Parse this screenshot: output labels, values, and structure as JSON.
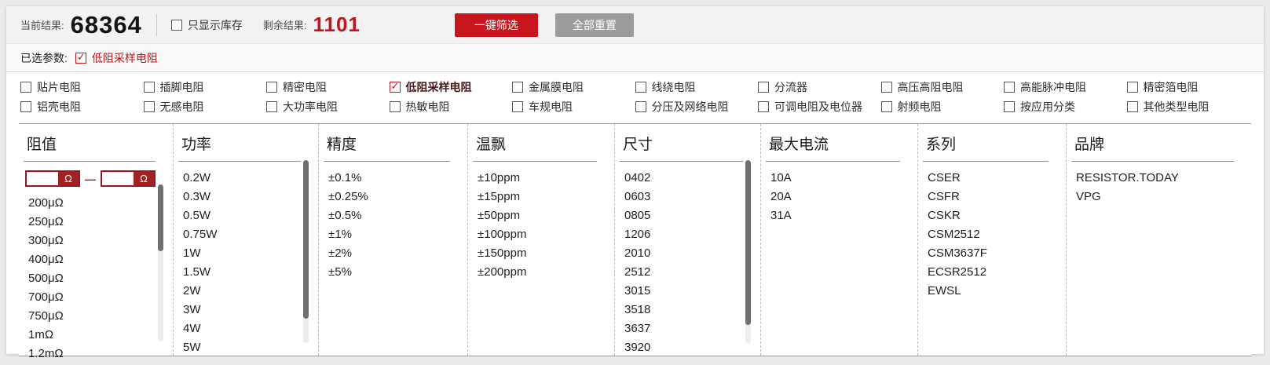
{
  "header": {
    "current_label": "当前结果:",
    "current_value": "68364",
    "stock_checkbox_label": "只显示库存",
    "stock_checked": false,
    "remaining_label": "剩余结果:",
    "remaining_value": "1101",
    "filter_button": "一键筛选",
    "reset_button": "全部重置"
  },
  "selected": {
    "label": "已选参数:",
    "items": [
      {
        "label": "低阻采样电阻",
        "checked": true
      }
    ]
  },
  "categories": [
    {
      "label": "贴片电阻",
      "checked": false
    },
    {
      "label": "插脚电阻",
      "checked": false
    },
    {
      "label": "精密电阻",
      "checked": false
    },
    {
      "label": "低阻采样电阻",
      "checked": true
    },
    {
      "label": "金属膜电阻",
      "checked": false
    },
    {
      "label": "线绕电阻",
      "checked": false
    },
    {
      "label": "分流器",
      "checked": false
    },
    {
      "label": "高压高阻电阻",
      "checked": false
    },
    {
      "label": "高能脉冲电阻",
      "checked": false
    },
    {
      "label": "精密箔电阻",
      "checked": false
    },
    {
      "label": "铝壳电阻",
      "checked": false
    },
    {
      "label": "无感电阻",
      "checked": false
    },
    {
      "label": "大功率电阻",
      "checked": false
    },
    {
      "label": "热敏电阻",
      "checked": false
    },
    {
      "label": "车规电阻",
      "checked": false
    },
    {
      "label": "分压及网络电阻",
      "checked": false
    },
    {
      "label": "可调电阻及电位器",
      "checked": false
    },
    {
      "label": "射频电阻",
      "checked": false
    },
    {
      "label": "按应用分类",
      "checked": false
    },
    {
      "label": "其他类型电阻",
      "checked": false
    }
  ],
  "filters": {
    "resistance": {
      "title": "阻值",
      "unit": "Ω",
      "min_value": "",
      "max_value": "",
      "items": [
        "200μΩ",
        "250μΩ",
        "300μΩ",
        "400μΩ",
        "500μΩ",
        "700μΩ",
        "750μΩ",
        "1mΩ",
        "1.2mΩ"
      ]
    },
    "power": {
      "title": "功率",
      "items": [
        "0.2W",
        "0.3W",
        "0.5W",
        "0.75W",
        "1W",
        "1.5W",
        "2W",
        "3W",
        "4W",
        "5W"
      ]
    },
    "precision": {
      "title": "精度",
      "items": [
        "±0.1%",
        "±0.25%",
        "±0.5%",
        "±1%",
        "±2%",
        "±5%"
      ]
    },
    "tempco": {
      "title": "温飘",
      "items": [
        "±10ppm",
        "±15ppm",
        "±50ppm",
        "±100ppm",
        "±150ppm",
        "±200ppm"
      ]
    },
    "size": {
      "title": "尺寸",
      "items": [
        "0402",
        "0603",
        "0805",
        "1206",
        "2010",
        "2512",
        "3015",
        "3518",
        "3637",
        "3920"
      ]
    },
    "max_current": {
      "title": "最大电流",
      "items": [
        "10A",
        "20A",
        "31A"
      ]
    },
    "series": {
      "title": "系列",
      "items": [
        "CSER",
        "CSFR",
        "CSKR",
        "CSM2512",
        "CSM3637F",
        "ECSR2512",
        "EWSL"
      ]
    },
    "brand": {
      "title": "品牌",
      "items": [
        "RESISTOR.TODAY",
        "VPG"
      ]
    }
  },
  "colors": {
    "accent_red": "#c0151c",
    "filter_button_red": "#c8161f",
    "reset_button_gray": "#9c9c9c",
    "count_black": "#141414"
  }
}
